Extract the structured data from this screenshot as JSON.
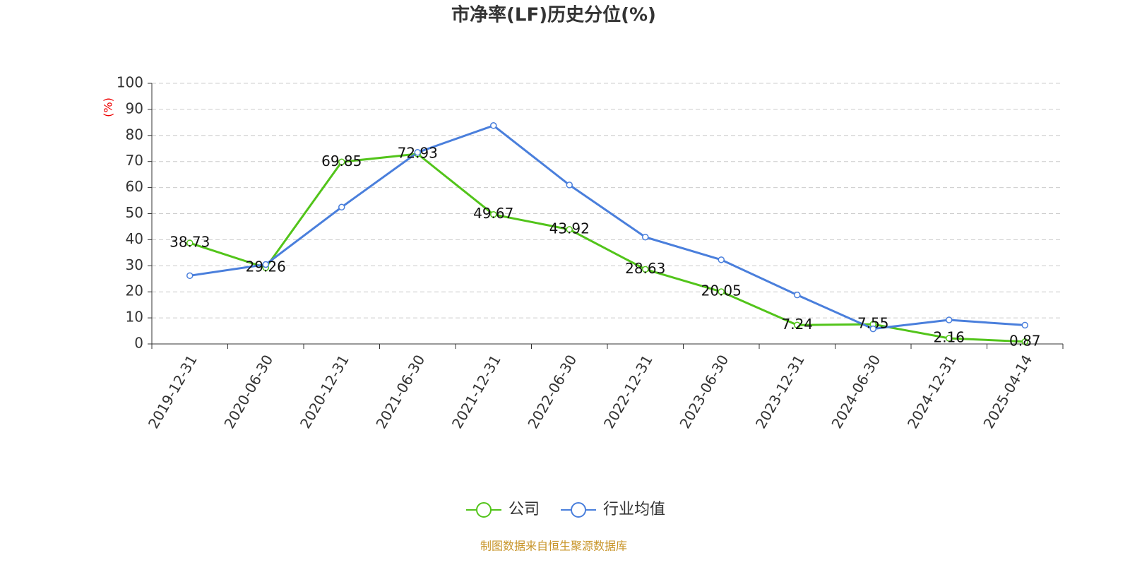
{
  "chart_data": {
    "type": "line",
    "title": "市净率(LF)历史分位(%)",
    "y_label": "(%)",
    "categories": [
      "2019-12-31",
      "2020-06-30",
      "2020-12-31",
      "2021-06-30",
      "2021-12-31",
      "2022-06-30",
      "2022-12-31",
      "2023-06-30",
      "2023-12-31",
      "2024-06-30",
      "2024-12-31",
      "2025-04-14"
    ],
    "series": [
      {
        "name": "公司",
        "color": "#52c41a",
        "labels": true,
        "values": [
          38.73,
          29.26,
          69.85,
          72.93,
          49.67,
          43.92,
          28.63,
          20.05,
          7.24,
          7.55,
          2.16,
          0.87
        ]
      },
      {
        "name": "行业均值",
        "color": "#4a7fdc",
        "labels": false,
        "values": [
          26.2,
          30.5,
          52.5,
          73.5,
          83.8,
          61,
          41,
          32.3,
          18.8,
          5.8,
          9.2,
          7.2
        ]
      }
    ],
    "ylim": [
      0,
      100
    ],
    "yticks": [
      0,
      10,
      20,
      30,
      40,
      50,
      60,
      70,
      80,
      90,
      100
    ],
    "grid": true,
    "legend": "bottom",
    "source": "制图数据来自恒生聚源数据库"
  }
}
